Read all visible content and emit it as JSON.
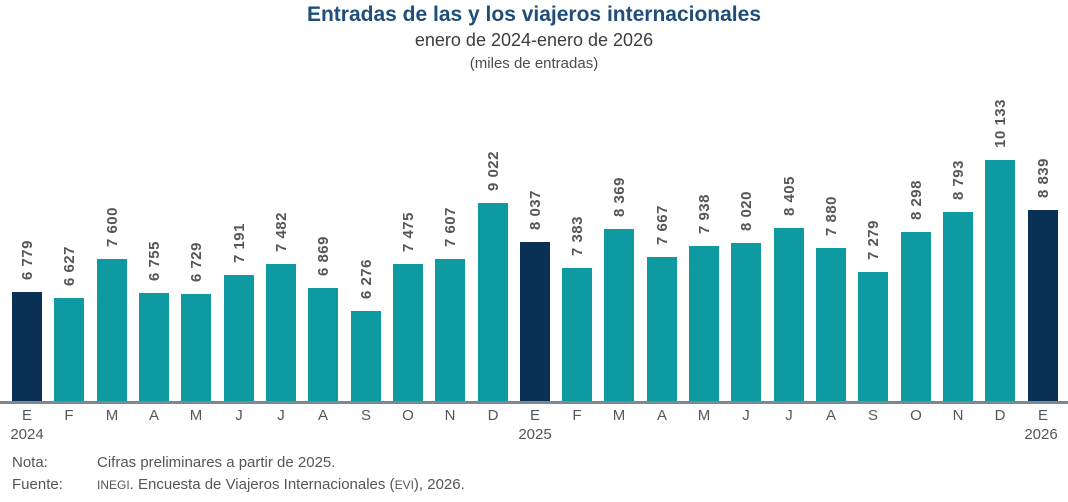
{
  "title": "Entradas de las y los viajeros internacionales",
  "subtitle": "enero de 2024-enero de 2026",
  "units_note": "(miles de entradas)",
  "colors": {
    "title": "#1E4E79",
    "bar_regular": "#0D9AA0",
    "bar_highlight": "#0B3056",
    "value_label": "#55565A",
    "axis_line": "#7D8893"
  },
  "chart_data": {
    "type": "bar",
    "title": "Entradas de las y los viajeros internacionales",
    "subtitle": "enero de 2024-enero de 2026",
    "units": "(miles de entradas)",
    "x": [
      "E",
      "F",
      "M",
      "A",
      "M",
      "J",
      "J",
      "A",
      "S",
      "O",
      "N",
      "D",
      "E",
      "F",
      "M",
      "A",
      "M",
      "J",
      "J",
      "A",
      "S",
      "O",
      "N",
      "D",
      "E"
    ],
    "values": [
      6779,
      6627,
      7600,
      6755,
      6729,
      7191,
      7482,
      6869,
      6276,
      7475,
      7607,
      9022,
      8037,
      7383,
      8369,
      7667,
      7938,
      8020,
      8405,
      7880,
      7279,
      8298,
      8793,
      10133,
      8839
    ],
    "value_labels": [
      "6 779",
      "6 627",
      "7 600",
      "6 755",
      "6 729",
      "7 191",
      "7 482",
      "6 869",
      "6 276",
      "7 475",
      "7 607",
      "9 022",
      "8 037",
      "7 383",
      "8 369",
      "7 667",
      "7 938",
      "8 020",
      "8 405",
      "7 880",
      "7 279",
      "8 298",
      "8 793",
      "10 133",
      "8 839"
    ],
    "highlight_indices": [
      0,
      12,
      24
    ],
    "years": [
      {
        "bar_index": 0,
        "label": "2024"
      },
      {
        "bar_index": 12,
        "label": "2025"
      },
      {
        "bar_index": 24,
        "label": "2026"
      }
    ],
    "ylim": [
      4000,
      10400
    ],
    "grid": false,
    "legend": false
  },
  "notes": {
    "nota_label": "Nota:",
    "nota_text": "Cifras preliminares a partir de 2025.",
    "fuente_label": "Fuente:",
    "fuente_inegi": "INEGI",
    "fuente_mid": ". Encuesta de Viajeros Internacionales (",
    "fuente_evi": "EVI",
    "fuente_end": "), 2026."
  }
}
